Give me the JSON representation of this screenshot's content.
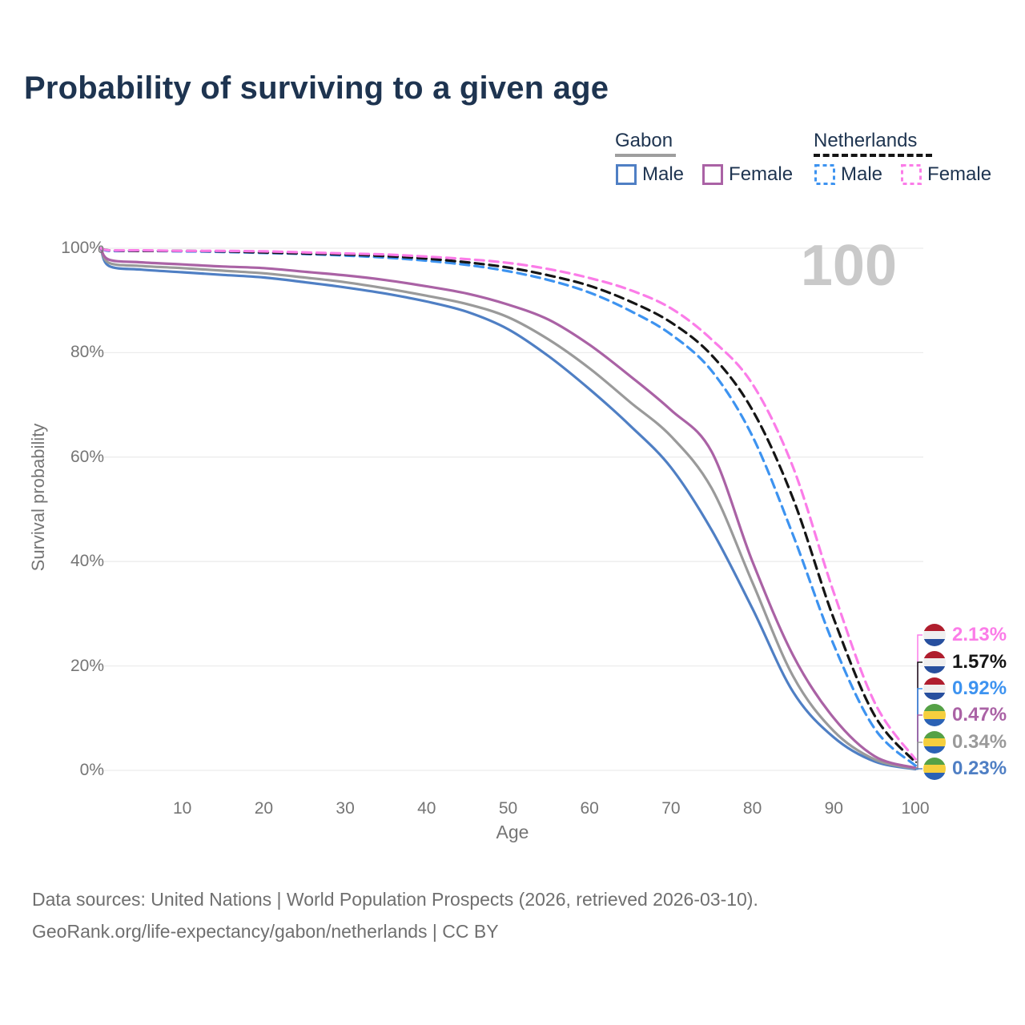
{
  "title": "Probability of surviving to a given age",
  "age_counter": "100",
  "legend": {
    "groups": [
      {
        "label": "Gabon",
        "line_style": "solid",
        "underline_color": "#9e9e9e",
        "items": [
          {
            "label": "Male",
            "color": "#4f7fc4",
            "dashed": false
          },
          {
            "label": "Female",
            "color": "#aa62a5",
            "dashed": false
          }
        ]
      },
      {
        "label": "Netherlands",
        "line_style": "dashed",
        "underline_color": "#151515",
        "items": [
          {
            "label": "Male",
            "color": "#3d93f0",
            "dashed": true
          },
          {
            "label": "Female",
            "color": "#fb7ce8",
            "dashed": true
          }
        ]
      }
    ]
  },
  "chart_data": {
    "type": "line",
    "title": "Probability of surviving to a given age",
    "xlabel": "Age",
    "ylabel": "Survival probability",
    "xlim": [
      0,
      100
    ],
    "ylim": [
      0,
      100
    ],
    "grid": true,
    "xticks": [
      10,
      20,
      30,
      40,
      50,
      60,
      70,
      80,
      90,
      100
    ],
    "yticks": [
      {
        "value": 0,
        "label": "0%"
      },
      {
        "value": 20,
        "label": "20%"
      },
      {
        "value": 40,
        "label": "40%"
      },
      {
        "value": 60,
        "label": "60%"
      },
      {
        "value": 80,
        "label": "80%"
      },
      {
        "value": 100,
        "label": "100%"
      }
    ],
    "x": [
      0,
      1,
      5,
      10,
      15,
      20,
      25,
      30,
      35,
      40,
      45,
      50,
      55,
      60,
      65,
      70,
      75,
      80,
      85,
      90,
      95,
      100
    ],
    "series": [
      {
        "name": "Gabon Male",
        "country": "gabon",
        "sex": "male",
        "color": "#4f7fc4",
        "dashed": false,
        "values": [
          100,
          96.6,
          95.9,
          95.4,
          94.9,
          94.4,
          93.5,
          92.5,
          91.3,
          89.8,
          87.8,
          84.5,
          79.3,
          73,
          66,
          58,
          46,
          31,
          15,
          6.3,
          1.7,
          0.23
        ],
        "end_label": "0.23%",
        "flag": "gabon"
      },
      {
        "name": "Gabon Both sexes",
        "country": "gabon",
        "sex": "both",
        "color": "#9a9a9a",
        "dashed": false,
        "values": [
          100,
          97.2,
          96.6,
          96.2,
          95.7,
          95.2,
          94.4,
          93.5,
          92.3,
          90.9,
          89.3,
          86.8,
          82.5,
          77,
          70.5,
          64,
          54,
          36,
          18,
          7.5,
          2.1,
          0.34
        ],
        "end_label": "0.34%",
        "flag": "gabon"
      },
      {
        "name": "Gabon Female",
        "country": "gabon",
        "sex": "female",
        "color": "#aa62a5",
        "dashed": false,
        "values": [
          100,
          97.8,
          97.3,
          96.9,
          96.5,
          96.2,
          95.5,
          94.8,
          93.9,
          92.7,
          91.3,
          89.2,
          86.3,
          81.5,
          75.5,
          69,
          61,
          40,
          22,
          10,
          2.7,
          0.47
        ],
        "end_label": "0.47%",
        "flag": "gabon"
      },
      {
        "name": "Netherlands Male",
        "country": "netherlands",
        "sex": "male",
        "color": "#3d93f0",
        "dashed": true,
        "values": [
          100,
          99.5,
          99.5,
          99.4,
          99.3,
          99.1,
          98.9,
          98.6,
          98.2,
          97.6,
          96.8,
          95.6,
          93.9,
          91.5,
          88,
          83.5,
          76.5,
          64,
          45,
          24,
          8,
          0.92
        ],
        "end_label": "0.92%",
        "flag": "netherlands"
      },
      {
        "name": "Netherlands Both sexes",
        "country": "netherlands",
        "sex": "both",
        "color": "#151515",
        "dashed": true,
        "values": [
          100,
          99.6,
          99.5,
          99.5,
          99.4,
          99.2,
          99.0,
          98.8,
          98.5,
          98.0,
          97.3,
          96.3,
          94.8,
          92.8,
          89.8,
          85.8,
          79.5,
          69,
          52,
          29,
          10.5,
          1.57
        ],
        "end_label": "1.57%",
        "flag": "netherlands"
      },
      {
        "name": "Netherlands Female",
        "country": "netherlands",
        "sex": "female",
        "color": "#fb7ce8",
        "dashed": true,
        "values": [
          100,
          99.6,
          99.6,
          99.5,
          99.5,
          99.4,
          99.2,
          99.0,
          98.8,
          98.4,
          97.9,
          97.2,
          96.0,
          94.3,
          92,
          88.5,
          82.5,
          74,
          58,
          34,
          13,
          2.13
        ],
        "end_label": "2.13%",
        "flag": "netherlands"
      }
    ],
    "end_labels_top_to_bottom": [
      {
        "value": "2.13%",
        "series": "Netherlands Female",
        "color": "#fb7ce8",
        "flag": "netherlands"
      },
      {
        "value": "1.57%",
        "series": "Netherlands Both sexes",
        "color": "#151515",
        "flag": "netherlands"
      },
      {
        "value": "0.92%",
        "series": "Netherlands Male",
        "color": "#3d93f0",
        "flag": "netherlands"
      },
      {
        "value": "0.47%",
        "series": "Gabon Female",
        "color": "#aa62a5",
        "flag": "gabon"
      },
      {
        "value": "0.34%",
        "series": "Gabon Both sexes",
        "color": "#9a9a9a",
        "flag": "gabon"
      },
      {
        "value": "0.23%",
        "series": "Gabon Male",
        "color": "#4f7fc4",
        "flag": "gabon"
      }
    ],
    "annotations": [
      {
        "text": "100",
        "meaning": "current age cursor",
        "color": "#c9c9c9"
      }
    ]
  },
  "flags": {
    "netherlands": [
      "#b01e2e",
      "#efefef",
      "#274f9e"
    ],
    "gabon": [
      "#55a146",
      "#f5cf3e",
      "#2b62b5"
    ]
  },
  "footer": {
    "line1": "Data sources: United Nations | World Population Prospects (2026, retrieved 2026-03-10).",
    "line2": "GeoRank.org/life-expectancy/gabon/netherlands | CC BY"
  }
}
